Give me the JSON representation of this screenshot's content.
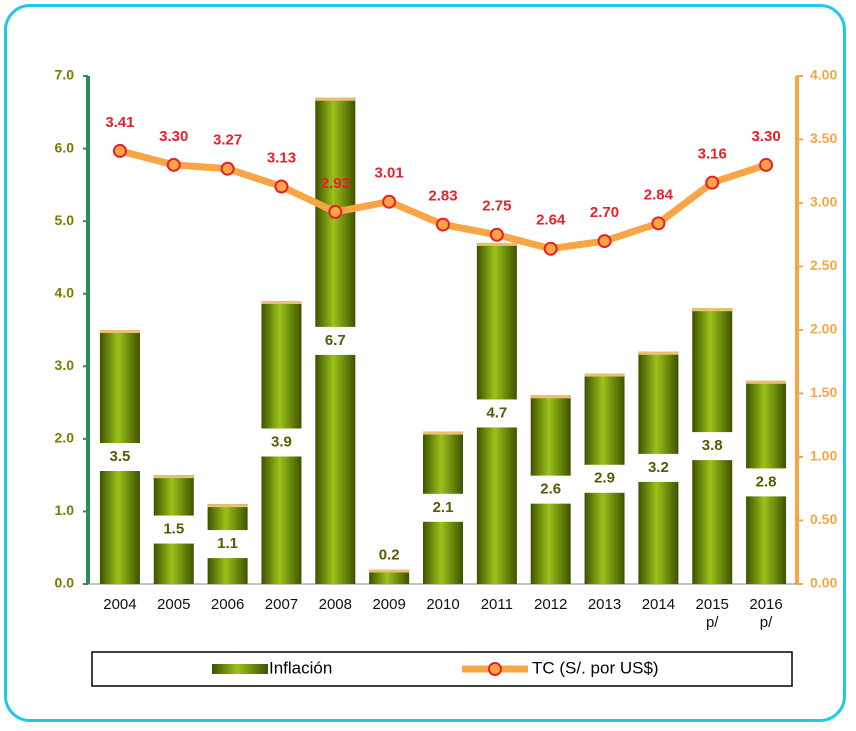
{
  "chart_data": {
    "type": "bar_line",
    "categories": [
      "2004",
      "2005",
      "2006",
      "2007",
      "2008",
      "2009",
      "2010",
      "2011",
      "2012",
      "2013",
      "2014",
      "2015\np/",
      "2016\np/"
    ],
    "series": [
      {
        "name": "Inflación",
        "type": "bar",
        "color": "#6b8e00",
        "values": [
          3.5,
          1.5,
          1.1,
          3.9,
          6.7,
          0.2,
          2.1,
          4.7,
          2.6,
          2.9,
          3.2,
          3.8,
          2.8
        ]
      },
      {
        "name": "TC (S/. por US$)",
        "type": "line",
        "axis": "y2",
        "color": "#f7a545",
        "marker_color": "#e8202a",
        "values": [
          3.41,
          3.3,
          3.27,
          3.13,
          2.93,
          3.01,
          2.83,
          2.75,
          2.64,
          2.7,
          2.84,
          3.16,
          3.3
        ],
        "value_labels": [
          "3.41",
          "3.30",
          "3.27",
          "3.13",
          "2.93",
          "3.01",
          "2.83",
          "2.75",
          "2.64",
          "2.70",
          "2.84",
          "3.16",
          "3.30"
        ]
      }
    ],
    "ylim": [
      0,
      7
    ],
    "yticks": [
      {
        "value": 0,
        "label": "0.0"
      },
      {
        "value": 1,
        "label": "1.0"
      },
      {
        "value": 2,
        "label": "2.0"
      },
      {
        "value": 3,
        "label": "3.0"
      },
      {
        "value": 4,
        "label": "4.0"
      },
      {
        "value": 5,
        "label": "5.0"
      },
      {
        "value": 6,
        "label": "6.0"
      },
      {
        "value": 7,
        "label": "7.0"
      }
    ],
    "y2lim": [
      0,
      4
    ],
    "y2ticks": [
      {
        "value": 0,
        "label": "0.00"
      },
      {
        "value": 0.5,
        "label": "0.50"
      },
      {
        "value": 1,
        "label": "1.00"
      },
      {
        "value": 1.5,
        "label": "1.50"
      },
      {
        "value": 2,
        "label": "2.00"
      },
      {
        "value": 2.5,
        "label": "2.50"
      },
      {
        "value": 3,
        "label": "3.00"
      },
      {
        "value": 3.5,
        "label": "3.50"
      },
      {
        "value": 4,
        "label": "4.00"
      }
    ],
    "legend": "bottom"
  }
}
